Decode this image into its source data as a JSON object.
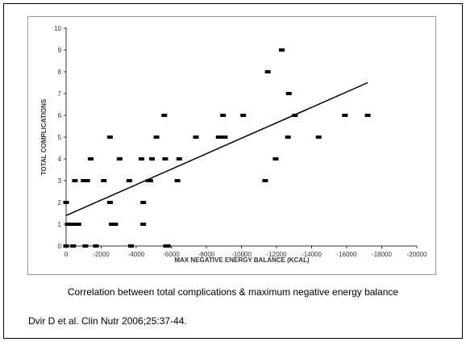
{
  "chart_data": {
    "type": "scatter",
    "xlabel": "MAX NEGATIVE ENERGY BALANCE (KCAL)",
    "ylabel": "TOTAL COMPLICATIONS",
    "caption": "Correlation between total complications & maximum negative energy balance",
    "source": "Dvir D et al. Clin Nutr 2006;25:37-44.",
    "xlim": [
      0,
      -20000
    ],
    "xticks": [
      0,
      -2000,
      -4000,
      -6000,
      -8000,
      -10000,
      -12000,
      -14000,
      -16000,
      -18000,
      -20000
    ],
    "ylim": [
      0,
      10
    ],
    "yticks": [
      0,
      1,
      2,
      3,
      4,
      5,
      6,
      7,
      8,
      9,
      10
    ],
    "color": "#000000",
    "series": [
      {
        "x": [
          0,
          -100,
          -300,
          -500,
          -700,
          0,
          -400,
          -500,
          -1000,
          -1200,
          -1100,
          -1400,
          -1700,
          -2150,
          -2500,
          -2500,
          -2600,
          -2800,
          -3050,
          -3600,
          -3700,
          -4300,
          -4400,
          -4400,
          -4700,
          -4800,
          -4900,
          -5150,
          -5600,
          -5650,
          -5700,
          -5800,
          -6350,
          -6450,
          -7400,
          -8700,
          -8900,
          -9050,
          -8950,
          -10100,
          -11350,
          -11500,
          -11950,
          -12300,
          -12650,
          -12700,
          -13050,
          -14400,
          -15900,
          -17200
        ],
        "values": [
          2,
          1,
          1,
          1,
          1,
          0,
          0,
          3,
          3,
          3,
          0,
          4,
          0,
          3,
          5,
          2,
          1,
          1,
          4,
          3,
          0,
          4,
          2,
          1,
          3,
          3,
          4,
          5,
          6,
          4,
          0,
          0,
          3,
          4,
          5,
          5,
          5,
          5,
          6,
          6,
          3,
          8,
          4,
          9,
          5,
          7,
          6,
          5,
          6,
          6
        ]
      }
    ],
    "trendline": {
      "x": [
        0,
        -17200
      ],
      "values": [
        1.4,
        7.5
      ],
      "color": "#000000"
    }
  }
}
